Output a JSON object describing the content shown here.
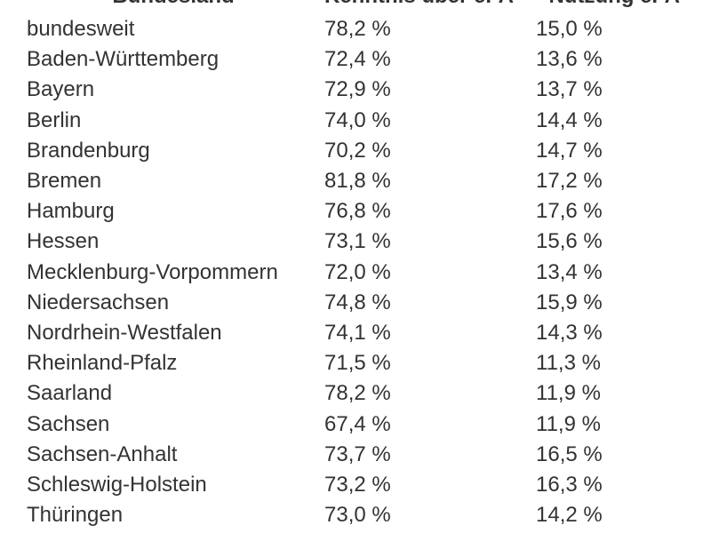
{
  "table": {
    "header": [
      "Bundesland",
      "Kenntnis über ePA",
      "Nutzung ePA"
    ],
    "rows": [
      [
        "bundesweit",
        "78,2 %",
        "15,0 %"
      ],
      [
        "Baden-Württemberg",
        "72,4 %",
        "13,6 %"
      ],
      [
        "Bayern",
        "72,9 %",
        "13,7 %"
      ],
      [
        "Berlin",
        "74,0 %",
        "14,4 %"
      ],
      [
        "Brandenburg",
        "70,2 %",
        "14,7 %"
      ],
      [
        "Bremen",
        "81,8 %",
        "17,2 %"
      ],
      [
        "Hamburg",
        "76,8 %",
        "17,6 %"
      ],
      [
        "Hessen",
        "73,1 %",
        "15,6 %"
      ],
      [
        "Mecklenburg-Vorpommern",
        "72,0 %",
        "13,4 %"
      ],
      [
        "Niedersachsen",
        "74,8 %",
        "15,9 %"
      ],
      [
        "Nordrhein-Westfalen",
        "74,1 %",
        "14,3 %"
      ],
      [
        "Rheinland-Pfalz",
        "71,5 %",
        "11,3 %"
      ],
      [
        "Saarland",
        "78,2 %",
        "11,9 %"
      ],
      [
        "Sachsen",
        "67,4 %",
        "11,9 %"
      ],
      [
        "Sachsen-Anhalt",
        "73,7 %",
        "16,5 %"
      ],
      [
        "Schleswig-Holstein",
        "73,2 %",
        "16,3 %"
      ],
      [
        "Thüringen",
        "73,0 %",
        "14,2 %"
      ]
    ]
  }
}
